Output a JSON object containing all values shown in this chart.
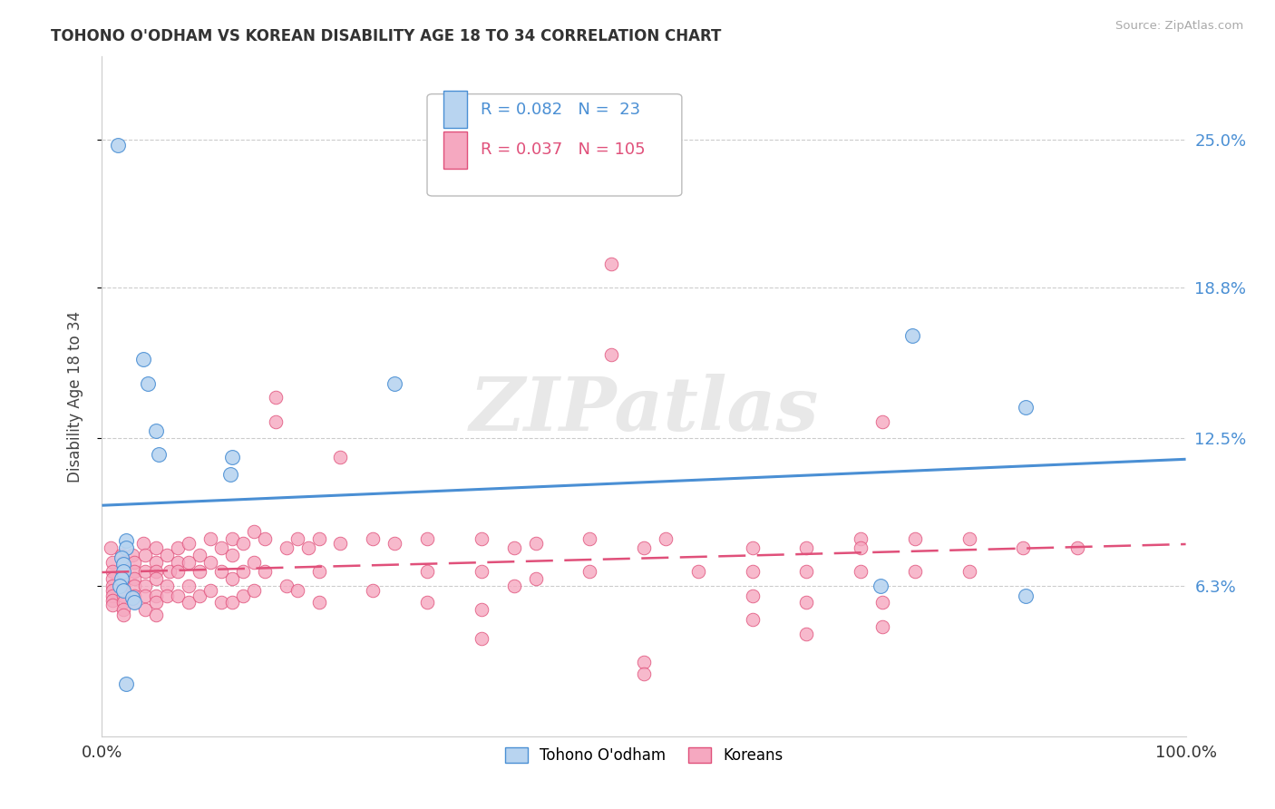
{
  "title": "TOHONO O'ODHAM VS KOREAN DISABILITY AGE 18 TO 34 CORRELATION CHART",
  "source": "Source: ZipAtlas.com",
  "ylabel": "Disability Age 18 to 34",
  "xlim": [
    0,
    1.0
  ],
  "ylim": [
    0.0,
    0.285
  ],
  "xticklabels": [
    "0.0%",
    "100.0%"
  ],
  "yticklabels": [
    "6.3%",
    "12.5%",
    "18.8%",
    "25.0%"
  ],
  "ytick_values": [
    0.063,
    0.125,
    0.188,
    0.25
  ],
  "color_blue": "#b8d4f0",
  "color_pink": "#f5a8c0",
  "color_blue_line": "#4a8fd4",
  "color_pink_line": "#e0507a",
  "color_grid": "#cccccc",
  "watermark_text": "ZIPatlas",
  "tohono_points": [
    [
      0.015,
      0.248
    ],
    [
      0.038,
      0.158
    ],
    [
      0.042,
      0.148
    ],
    [
      0.05,
      0.128
    ],
    [
      0.052,
      0.118
    ],
    [
      0.022,
      0.082
    ],
    [
      0.022,
      0.079
    ],
    [
      0.018,
      0.075
    ],
    [
      0.02,
      0.072
    ],
    [
      0.02,
      0.069
    ],
    [
      0.018,
      0.066
    ],
    [
      0.016,
      0.063
    ],
    [
      0.02,
      0.061
    ],
    [
      0.028,
      0.058
    ],
    [
      0.03,
      0.056
    ],
    [
      0.12,
      0.117
    ],
    [
      0.118,
      0.11
    ],
    [
      0.27,
      0.148
    ],
    [
      0.748,
      0.168
    ],
    [
      0.852,
      0.138
    ],
    [
      0.718,
      0.063
    ],
    [
      0.852,
      0.059
    ],
    [
      0.022,
      0.022
    ]
  ],
  "korean_points": [
    [
      0.008,
      0.079
    ],
    [
      0.01,
      0.073
    ],
    [
      0.01,
      0.069
    ],
    [
      0.01,
      0.066
    ],
    [
      0.01,
      0.063
    ],
    [
      0.01,
      0.061
    ],
    [
      0.01,
      0.059
    ],
    [
      0.01,
      0.057
    ],
    [
      0.01,
      0.055
    ],
    [
      0.018,
      0.076
    ],
    [
      0.02,
      0.073
    ],
    [
      0.02,
      0.069
    ],
    [
      0.02,
      0.066
    ],
    [
      0.02,
      0.063
    ],
    [
      0.02,
      0.059
    ],
    [
      0.02,
      0.056
    ],
    [
      0.02,
      0.053
    ],
    [
      0.02,
      0.051
    ],
    [
      0.028,
      0.076
    ],
    [
      0.03,
      0.073
    ],
    [
      0.03,
      0.069
    ],
    [
      0.03,
      0.066
    ],
    [
      0.03,
      0.063
    ],
    [
      0.03,
      0.059
    ],
    [
      0.03,
      0.056
    ],
    [
      0.038,
      0.081
    ],
    [
      0.04,
      0.076
    ],
    [
      0.04,
      0.069
    ],
    [
      0.04,
      0.063
    ],
    [
      0.04,
      0.059
    ],
    [
      0.04,
      0.053
    ],
    [
      0.05,
      0.079
    ],
    [
      0.05,
      0.073
    ],
    [
      0.05,
      0.069
    ],
    [
      0.05,
      0.066
    ],
    [
      0.05,
      0.059
    ],
    [
      0.05,
      0.056
    ],
    [
      0.05,
      0.051
    ],
    [
      0.06,
      0.076
    ],
    [
      0.062,
      0.069
    ],
    [
      0.06,
      0.063
    ],
    [
      0.06,
      0.059
    ],
    [
      0.07,
      0.079
    ],
    [
      0.07,
      0.073
    ],
    [
      0.07,
      0.069
    ],
    [
      0.07,
      0.059
    ],
    [
      0.08,
      0.081
    ],
    [
      0.08,
      0.073
    ],
    [
      0.08,
      0.063
    ],
    [
      0.08,
      0.056
    ],
    [
      0.09,
      0.076
    ],
    [
      0.09,
      0.069
    ],
    [
      0.09,
      0.059
    ],
    [
      0.1,
      0.083
    ],
    [
      0.1,
      0.073
    ],
    [
      0.1,
      0.061
    ],
    [
      0.11,
      0.079
    ],
    [
      0.11,
      0.069
    ],
    [
      0.11,
      0.056
    ],
    [
      0.12,
      0.083
    ],
    [
      0.12,
      0.076
    ],
    [
      0.12,
      0.066
    ],
    [
      0.12,
      0.056
    ],
    [
      0.13,
      0.081
    ],
    [
      0.13,
      0.069
    ],
    [
      0.13,
      0.059
    ],
    [
      0.14,
      0.086
    ],
    [
      0.14,
      0.073
    ],
    [
      0.14,
      0.061
    ],
    [
      0.15,
      0.083
    ],
    [
      0.15,
      0.069
    ],
    [
      0.16,
      0.142
    ],
    [
      0.16,
      0.132
    ],
    [
      0.17,
      0.079
    ],
    [
      0.17,
      0.063
    ],
    [
      0.18,
      0.083
    ],
    [
      0.18,
      0.061
    ],
    [
      0.19,
      0.079
    ],
    [
      0.2,
      0.083
    ],
    [
      0.2,
      0.069
    ],
    [
      0.2,
      0.056
    ],
    [
      0.22,
      0.117
    ],
    [
      0.22,
      0.081
    ],
    [
      0.25,
      0.083
    ],
    [
      0.25,
      0.061
    ],
    [
      0.27,
      0.081
    ],
    [
      0.3,
      0.083
    ],
    [
      0.3,
      0.069
    ],
    [
      0.3,
      0.056
    ],
    [
      0.35,
      0.083
    ],
    [
      0.35,
      0.069
    ],
    [
      0.35,
      0.053
    ],
    [
      0.35,
      0.041
    ],
    [
      0.38,
      0.079
    ],
    [
      0.38,
      0.063
    ],
    [
      0.4,
      0.081
    ],
    [
      0.4,
      0.066
    ],
    [
      0.45,
      0.083
    ],
    [
      0.45,
      0.069
    ],
    [
      0.47,
      0.198
    ],
    [
      0.47,
      0.16
    ],
    [
      0.5,
      0.079
    ],
    [
      0.5,
      0.031
    ],
    [
      0.5,
      0.026
    ],
    [
      0.52,
      0.083
    ],
    [
      0.55,
      0.069
    ],
    [
      0.6,
      0.079
    ],
    [
      0.6,
      0.069
    ],
    [
      0.6,
      0.059
    ],
    [
      0.6,
      0.049
    ],
    [
      0.65,
      0.079
    ],
    [
      0.65,
      0.069
    ],
    [
      0.65,
      0.056
    ],
    [
      0.65,
      0.043
    ],
    [
      0.7,
      0.083
    ],
    [
      0.7,
      0.079
    ],
    [
      0.7,
      0.069
    ],
    [
      0.72,
      0.132
    ],
    [
      0.72,
      0.056
    ],
    [
      0.72,
      0.046
    ],
    [
      0.75,
      0.083
    ],
    [
      0.75,
      0.069
    ],
    [
      0.8,
      0.083
    ],
    [
      0.8,
      0.069
    ],
    [
      0.85,
      0.079
    ],
    [
      0.9,
      0.079
    ]
  ]
}
